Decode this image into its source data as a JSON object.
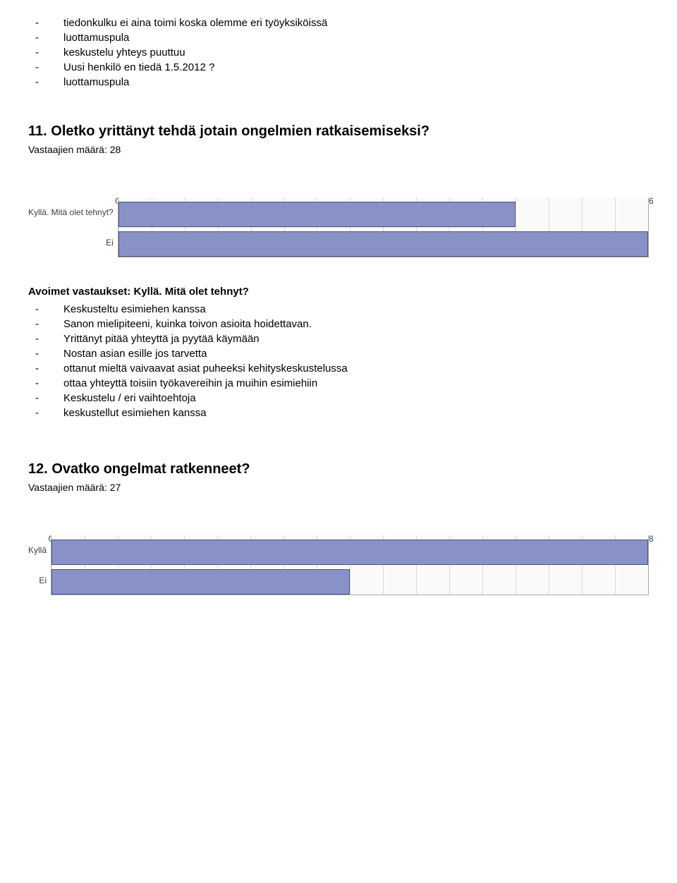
{
  "intro_bullets": [
    "tiedonkulku ei aina toimi koska olemme eri työyksiköissä",
    "luottamuspula",
    "keskustelu yhteys puuttuu",
    "Uusi henkilö en tiedä 1.5.2012 ?",
    "luottamuspula"
  ],
  "q11": {
    "title": "11. Oletko yrittänyt tehdä jotain ongelmien ratkaisemiseksi?",
    "respondents": "Vastaajien määrä: 28",
    "chart": {
      "type": "bar-horizontal",
      "bar_color": "#8892c7",
      "bar_border": "#4a5680",
      "bg_color": "#fafafa",
      "grid_color": "#d8d8d8",
      "axis_color": "#a8a8a8",
      "label_fontsize": 12,
      "xmin": 0,
      "xmax": 16,
      "tick_step": 1,
      "categories": [
        "Kyllä. Mitä olet tehnyt?",
        "Ei"
      ],
      "values": [
        12,
        16
      ]
    },
    "open_title": "Avoimet vastaukset: Kyllä. Mitä olet tehnyt?",
    "open_bullets": [
      "Keskusteltu esimiehen kanssa",
      "Sanon mielipiteeni, kuinka toivon asioita hoidettavan.",
      "Yrittänyt pitää yhteyttä ja pyytää käymään",
      "Nostan asian esille jos tarvetta",
      "ottanut mieltä vaivaavat asiat puheeksi kehityskeskustelussa",
      "ottaa yhteyttä toisiin työkavereihin ja muihin esimiehiin",
      "Keskustelu / eri vaihtoehtoja",
      "keskustellut esimiehen kanssa"
    ]
  },
  "q12": {
    "title": "12. Ovatko ongelmat ratkenneet?",
    "respondents": "Vastaajien määrä: 27",
    "chart": {
      "type": "bar-horizontal",
      "bar_color": "#8892c7",
      "bar_border": "#4a5680",
      "bg_color": "#fafafa",
      "grid_color": "#d8d8d8",
      "axis_color": "#a8a8a8",
      "label_fontsize": 12,
      "xmin": 0,
      "xmax": 18,
      "tick_step": 1,
      "categories": [
        "Kyllä",
        "Ei"
      ],
      "values": [
        18,
        9
      ]
    }
  },
  "dash": "-"
}
